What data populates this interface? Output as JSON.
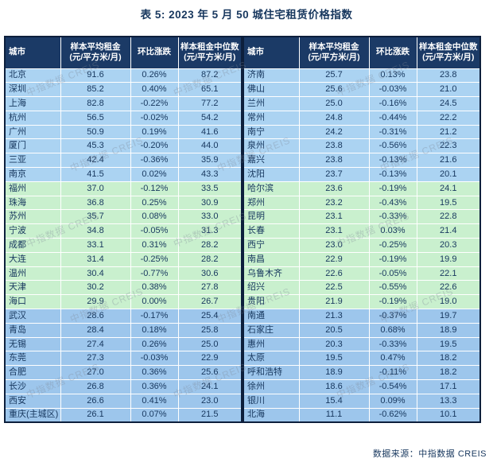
{
  "title": "表 5: 2023 年 5 月 50 城住宅租赁价格指数",
  "source_note": "数据来源：中指数据 CREIS",
  "watermark_text": "中指数据 CREIS",
  "colors": {
    "header_bg": "#1b3a66",
    "ink": "#17375e",
    "band_top": "#abd3f2",
    "band_mid": "#c9f0ce",
    "band_low": "#9dc6ec"
  },
  "columns": {
    "city": "城市",
    "avg": "样本平均租金\n(元/平方米/月)",
    "mom": "环比涨跌",
    "median": "样本租金中位数\n(元/平方米/月)"
  },
  "tables": {
    "left": {
      "rows": [
        {
          "city": "北京",
          "avg": "91.6",
          "mom": "0.26%",
          "median": "87.2",
          "band": "top"
        },
        {
          "city": "深圳",
          "avg": "85.2",
          "mom": "0.40%",
          "median": "65.1",
          "band": "top"
        },
        {
          "city": "上海",
          "avg": "82.8",
          "mom": "-0.22%",
          "median": "77.2",
          "band": "top"
        },
        {
          "city": "杭州",
          "avg": "56.5",
          "mom": "-0.02%",
          "median": "54.2",
          "band": "top"
        },
        {
          "city": "广州",
          "avg": "50.9",
          "mom": "0.19%",
          "median": "41.6",
          "band": "top"
        },
        {
          "city": "厦门",
          "avg": "45.3",
          "mom": "-0.20%",
          "median": "44.0",
          "band": "top"
        },
        {
          "city": "三亚",
          "avg": "42.4",
          "mom": "-0.36%",
          "median": "35.9",
          "band": "top"
        },
        {
          "city": "南京",
          "avg": "41.5",
          "mom": "0.02%",
          "median": "43.3",
          "band": "top"
        },
        {
          "city": "福州",
          "avg": "37.0",
          "mom": "-0.12%",
          "median": "33.5",
          "band": "mid"
        },
        {
          "city": "珠海",
          "avg": "36.8",
          "mom": "0.25%",
          "median": "30.9",
          "band": "mid"
        },
        {
          "city": "苏州",
          "avg": "35.7",
          "mom": "0.08%",
          "median": "33.0",
          "band": "mid"
        },
        {
          "city": "宁波",
          "avg": "34.8",
          "mom": "-0.05%",
          "median": "31.3",
          "band": "mid"
        },
        {
          "city": "成都",
          "avg": "33.1",
          "mom": "0.31%",
          "median": "28.2",
          "band": "mid"
        },
        {
          "city": "大连",
          "avg": "31.4",
          "mom": "-0.25%",
          "median": "28.2",
          "band": "mid"
        },
        {
          "city": "温州",
          "avg": "30.4",
          "mom": "-0.77%",
          "median": "30.6",
          "band": "mid"
        },
        {
          "city": "天津",
          "avg": "30.2",
          "mom": "0.38%",
          "median": "27.8",
          "band": "mid"
        },
        {
          "city": "海口",
          "avg": "29.9",
          "mom": "0.00%",
          "median": "26.7",
          "band": "mid"
        },
        {
          "city": "武汉",
          "avg": "28.6",
          "mom": "-0.17%",
          "median": "25.4",
          "band": "low"
        },
        {
          "city": "青岛",
          "avg": "28.4",
          "mom": "0.18%",
          "median": "25.8",
          "band": "low"
        },
        {
          "city": "无锡",
          "avg": "27.4",
          "mom": "0.26%",
          "median": "25.0",
          "band": "low"
        },
        {
          "city": "东莞",
          "avg": "27.3",
          "mom": "-0.03%",
          "median": "22.9",
          "band": "low"
        },
        {
          "city": "合肥",
          "avg": "27.0",
          "mom": "0.36%",
          "median": "25.6",
          "band": "low"
        },
        {
          "city": "长沙",
          "avg": "26.8",
          "mom": "0.36%",
          "median": "24.1",
          "band": "low"
        },
        {
          "city": "西安",
          "avg": "26.6",
          "mom": "0.41%",
          "median": "23.0",
          "band": "low"
        },
        {
          "city": "重庆(主城区)",
          "avg": "26.1",
          "mom": "0.07%",
          "median": "21.5",
          "band": "low"
        }
      ]
    },
    "right": {
      "rows": [
        {
          "city": "济南",
          "avg": "25.7",
          "mom": "0.13%",
          "median": "23.8",
          "band": "top"
        },
        {
          "city": "佛山",
          "avg": "25.6",
          "mom": "-0.03%",
          "median": "21.0",
          "band": "top"
        },
        {
          "city": "兰州",
          "avg": "25.0",
          "mom": "-0.16%",
          "median": "24.5",
          "band": "top"
        },
        {
          "city": "常州",
          "avg": "24.8",
          "mom": "-0.44%",
          "median": "22.2",
          "band": "top"
        },
        {
          "city": "南宁",
          "avg": "24.2",
          "mom": "-0.31%",
          "median": "21.2",
          "band": "top"
        },
        {
          "city": "泉州",
          "avg": "23.8",
          "mom": "-0.56%",
          "median": "22.3",
          "band": "top"
        },
        {
          "city": "嘉兴",
          "avg": "23.8",
          "mom": "-0.13%",
          "median": "21.6",
          "band": "top"
        },
        {
          "city": "沈阳",
          "avg": "23.7",
          "mom": "-0.13%",
          "median": "20.1",
          "band": "top"
        },
        {
          "city": "哈尔滨",
          "avg": "23.6",
          "mom": "-0.19%",
          "median": "24.1",
          "band": "mid"
        },
        {
          "city": "郑州",
          "avg": "23.2",
          "mom": "-0.43%",
          "median": "19.5",
          "band": "mid"
        },
        {
          "city": "昆明",
          "avg": "23.1",
          "mom": "-0.33%",
          "median": "22.8",
          "band": "mid"
        },
        {
          "city": "长春",
          "avg": "23.1",
          "mom": "0.03%",
          "median": "21.4",
          "band": "mid"
        },
        {
          "city": "西宁",
          "avg": "23.0",
          "mom": "-0.25%",
          "median": "20.3",
          "band": "mid"
        },
        {
          "city": "南昌",
          "avg": "22.9",
          "mom": "-0.19%",
          "median": "19.9",
          "band": "mid"
        },
        {
          "city": "乌鲁木齐",
          "avg": "22.6",
          "mom": "-0.05%",
          "median": "22.1",
          "band": "mid"
        },
        {
          "city": "绍兴",
          "avg": "22.5",
          "mom": "-0.55%",
          "median": "22.6",
          "band": "mid"
        },
        {
          "city": "贵阳",
          "avg": "21.9",
          "mom": "-0.19%",
          "median": "19.0",
          "band": "mid"
        },
        {
          "city": "南通",
          "avg": "21.3",
          "mom": "-0.37%",
          "median": "19.7",
          "band": "low"
        },
        {
          "city": "石家庄",
          "avg": "20.5",
          "mom": "0.68%",
          "median": "18.9",
          "band": "low"
        },
        {
          "city": "惠州",
          "avg": "20.3",
          "mom": "-0.33%",
          "median": "19.5",
          "band": "low"
        },
        {
          "city": "太原",
          "avg": "19.5",
          "mom": "0.47%",
          "median": "18.2",
          "band": "low"
        },
        {
          "city": "呼和浩特",
          "avg": "18.9",
          "mom": "-0.11%",
          "median": "18.2",
          "band": "low"
        },
        {
          "city": "徐州",
          "avg": "18.6",
          "mom": "-0.54%",
          "median": "17.1",
          "band": "low"
        },
        {
          "city": "银川",
          "avg": "15.4",
          "mom": "0.09%",
          "median": "13.3",
          "band": "low"
        },
        {
          "city": "北海",
          "avg": "11.1",
          "mom": "-0.62%",
          "median": "10.1",
          "band": "low"
        }
      ]
    }
  }
}
